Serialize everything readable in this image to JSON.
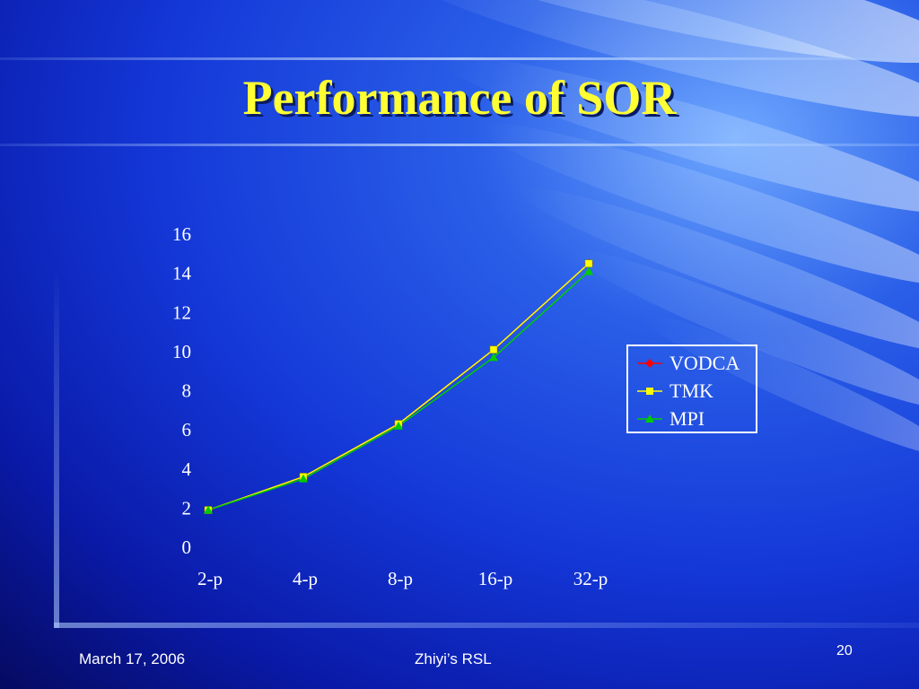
{
  "slide": {
    "title": "Performance of SOR",
    "footer_date": "March 17, 2006",
    "footer_center": "Zhiyi’s RSL",
    "page_number": "20"
  },
  "chart_data": {
    "type": "line",
    "categories": [
      "2-p",
      "4-p",
      "8-p",
      "16-p",
      "32-p"
    ],
    "series": [
      {
        "name": "VODCA",
        "color": "#ff0000",
        "marker": "diamond",
        "values": [
          1.9,
          3.6,
          6.3,
          10.1,
          14.5
        ]
      },
      {
        "name": "TMK",
        "color": "#ffff00",
        "marker": "square",
        "values": [
          1.9,
          3.6,
          6.3,
          10.1,
          14.5
        ]
      },
      {
        "name": "MPI",
        "color": "#00cc00",
        "marker": "triangle",
        "values": [
          1.9,
          3.5,
          6.2,
          9.7,
          14.1
        ]
      }
    ],
    "ylim": [
      0,
      16
    ],
    "yticks": [
      "0",
      "2",
      "4",
      "6",
      "8",
      "10",
      "12",
      "14",
      "16"
    ],
    "title": "",
    "xlabel": "",
    "ylabel": "",
    "legend": "right",
    "grid": false
  }
}
